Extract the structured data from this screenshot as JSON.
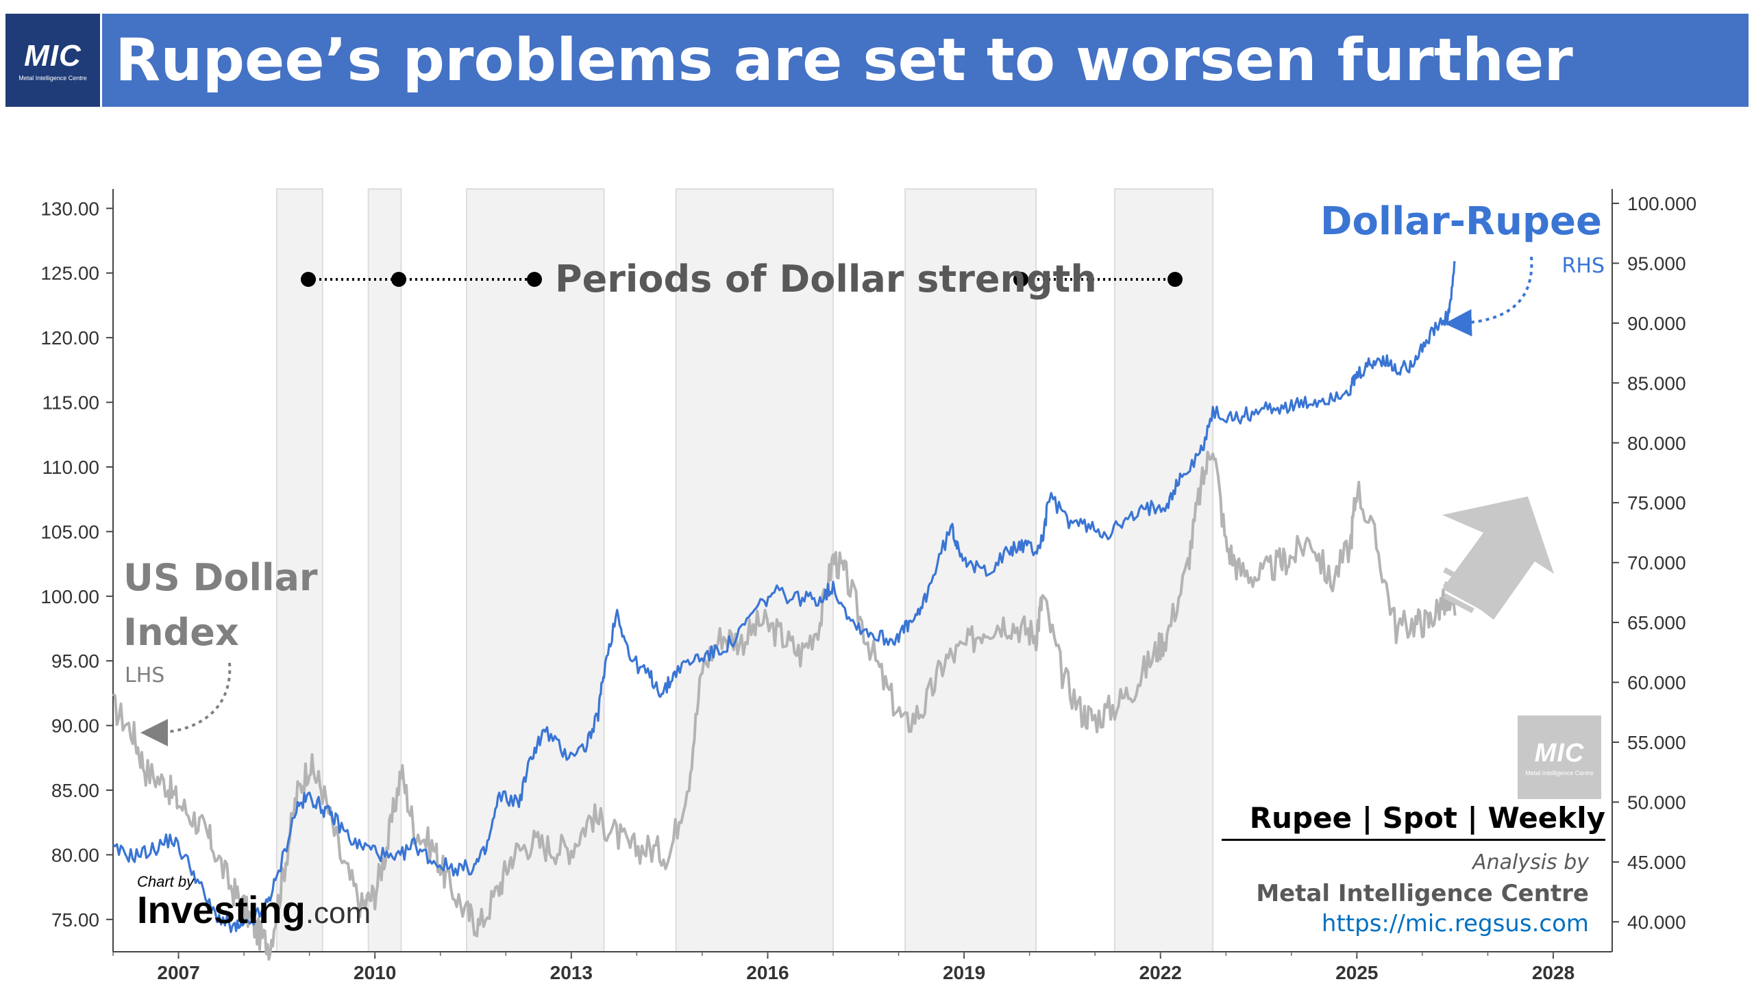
{
  "header": {
    "logo": "MIC",
    "logo_subtitle": "Metal Intelligence Centre",
    "title": "Rupee’s problems are set to worsen further"
  },
  "colors": {
    "banner": "#4472c4",
    "usdinr_series": "#3a75d4",
    "dxy_series": "#b3b3b3",
    "shade": "#f2f2f2"
  },
  "chart_data": {
    "type": "line",
    "x_range": [
      2006.0,
      2028.9
    ],
    "x_ticks": [
      "2007",
      "2010",
      "2013",
      "2016",
      "2019",
      "2022",
      "2025",
      "2028"
    ],
    "y_left": {
      "label": "LHS",
      "range": [
        72.5,
        131.5
      ],
      "ticks": [
        "75.00",
        "80.00",
        "85.00",
        "90.00",
        "95.00",
        "100.00",
        "105.00",
        "110.00",
        "115.00",
        "120.00",
        "125.00",
        "130.00"
      ]
    },
    "y_right": {
      "label": "RHS",
      "range": [
        37.5,
        101.2
      ],
      "ticks": [
        "40.000",
        "45.000",
        "50.000",
        "55.000",
        "60.000",
        "65.000",
        "70.000",
        "75.000",
        "80.000",
        "85.000",
        "90.000",
        "95.000",
        "100.000"
      ]
    },
    "series": [
      {
        "name": "US Dollar Index",
        "axis": "left",
        "x": [
          2006.0,
          2006.3,
          2006.5,
          2006.8,
          2007.0,
          2007.3,
          2007.5,
          2007.8,
          2008.0,
          2008.2,
          2008.4,
          2008.6,
          2008.8,
          2009.0,
          2009.2,
          2009.5,
          2009.8,
          2010.0,
          2010.2,
          2010.4,
          2010.6,
          2010.9,
          2011.1,
          2011.4,
          2011.6,
          2011.9,
          2012.1,
          2012.4,
          2012.7,
          2013.0,
          2013.3,
          2013.6,
          2013.9,
          2014.2,
          2014.5,
          2014.8,
          2015.0,
          2015.3,
          2015.6,
          2015.9,
          2016.2,
          2016.5,
          2016.8,
          2017.0,
          2017.2,
          2017.5,
          2017.8,
          2018.1,
          2018.4,
          2018.7,
          2019.0,
          2019.3,
          2019.6,
          2019.9,
          2020.1,
          2020.2,
          2020.5,
          2020.8,
          2021.0,
          2021.3,
          2021.6,
          2021.9,
          2022.1,
          2022.4,
          2022.6,
          2022.8,
          2023.0,
          2023.2,
          2023.5,
          2023.8,
          2024.0,
          2024.3,
          2024.6,
          2024.9,
          2025.0,
          2025.3,
          2025.6,
          2025.9,
          2026.1,
          2026.3,
          2026.5
        ],
        "values": [
          91.5,
          89.5,
          86.5,
          85.5,
          84.0,
          82.5,
          81.0,
          77.5,
          76.0,
          74.0,
          73.0,
          78.5,
          84.5,
          87.0,
          85.0,
          79.5,
          76.0,
          77.0,
          81.0,
          86.5,
          82.0,
          80.5,
          78.0,
          75.5,
          74.5,
          77.5,
          80.0,
          81.0,
          80.5,
          80.5,
          83.0,
          82.0,
          80.5,
          80.5,
          80.0,
          86.0,
          94.5,
          97.0,
          96.5,
          98.0,
          97.0,
          95.5,
          98.0,
          103.0,
          101.5,
          97.0,
          93.0,
          90.0,
          91.5,
          95.0,
          96.0,
          97.5,
          98.0,
          97.5,
          97.0,
          100.0,
          94.0,
          91.0,
          90.5,
          91.5,
          93.0,
          95.5,
          97.0,
          102.0,
          108.0,
          112.0,
          104.0,
          102.0,
          101.5,
          102.5,
          103.0,
          104.5,
          101.0,
          104.0,
          108.5,
          104.0,
          97.5,
          98.0,
          98.0,
          99.5,
          98.5
        ]
      },
      {
        "name": "Dollar-Rupee",
        "axis": "right",
        "x": [
          2006.0,
          2006.3,
          2006.6,
          2006.9,
          2007.2,
          2007.5,
          2007.8,
          2008.0,
          2008.3,
          2008.5,
          2008.8,
          2009.0,
          2009.2,
          2009.4,
          2009.7,
          2010.0,
          2010.3,
          2010.6,
          2010.9,
          2011.2,
          2011.5,
          2011.7,
          2011.9,
          2012.2,
          2012.4,
          2012.6,
          2012.9,
          2013.2,
          2013.4,
          2013.5,
          2013.7,
          2013.9,
          2014.2,
          2014.4,
          2014.6,
          2014.9,
          2015.2,
          2015.5,
          2015.8,
          2016.1,
          2016.5,
          2016.8,
          2017.0,
          2017.3,
          2017.6,
          2017.9,
          2018.1,
          2018.3,
          2018.5,
          2018.8,
          2018.9,
          2019.1,
          2019.4,
          2019.7,
          2019.9,
          2020.1,
          2020.2,
          2020.3,
          2020.6,
          2020.9,
          2021.2,
          2021.5,
          2021.8,
          2022.1,
          2022.3,
          2022.6,
          2022.8,
          2023.1,
          2023.4,
          2023.7,
          2024.0,
          2024.3,
          2024.6,
          2024.9,
          2025.0,
          2025.2,
          2025.4,
          2025.6,
          2025.8,
          2026.0,
          2026.2,
          2026.4,
          2026.5
        ],
        "values": [
          46.0,
          45.5,
          46.0,
          47.0,
          44.5,
          41.0,
          39.5,
          39.5,
          41.0,
          43.5,
          49.5,
          50.5,
          49.5,
          48.5,
          46.5,
          46.0,
          45.0,
          46.5,
          45.0,
          44.5,
          44.5,
          46.0,
          50.5,
          50.0,
          54.0,
          56.0,
          54.0,
          54.5,
          57.0,
          61.0,
          66.0,
          62.0,
          60.5,
          59.0,
          61.0,
          62.0,
          62.5,
          63.5,
          66.0,
          67.5,
          67.0,
          67.0,
          68.0,
          65.0,
          64.0,
          63.5,
          64.5,
          65.5,
          68.5,
          73.0,
          71.5,
          69.5,
          69.5,
          71.0,
          71.5,
          71.0,
          72.0,
          75.5,
          73.5,
          73.0,
          72.5,
          73.5,
          74.5,
          75.0,
          77.0,
          79.0,
          82.5,
          82.0,
          82.5,
          83.0,
          83.0,
          83.3,
          83.8,
          84.5,
          85.5,
          86.5,
          87.0,
          86.0,
          86.5,
          88.0,
          89.5,
          90.5,
          95.0
        ]
      }
    ],
    "shaded_periods": [
      [
        2008.5,
        2009.2
      ],
      [
        2009.9,
        2010.4
      ],
      [
        2011.4,
        2013.5
      ],
      [
        2014.6,
        2017.0
      ],
      [
        2018.1,
        2020.1
      ],
      [
        2021.3,
        2022.8
      ]
    ]
  },
  "annotations": {
    "periods_label": "Periods of Dollar strength",
    "dollar_rupee_label": "Dollar-Rupee",
    "dollar_rupee_axis": "RHS",
    "dxy_label_line1": "US Dollar",
    "dxy_label_line2": "Index",
    "dxy_axis": "LHS"
  },
  "footer": {
    "source_title": "Rupee | Spot | Weekly",
    "analysis_by": "Analysis by",
    "org_name": "Metal Intelligence Centre",
    "org_url": "https://mic.regsus.com",
    "credit_by": "Chart by",
    "credit_brand": "Investing",
    "credit_suffix": ".com",
    "watermark_logo": "MIC",
    "watermark_subtitle": "Metal Intelligence Centre"
  }
}
